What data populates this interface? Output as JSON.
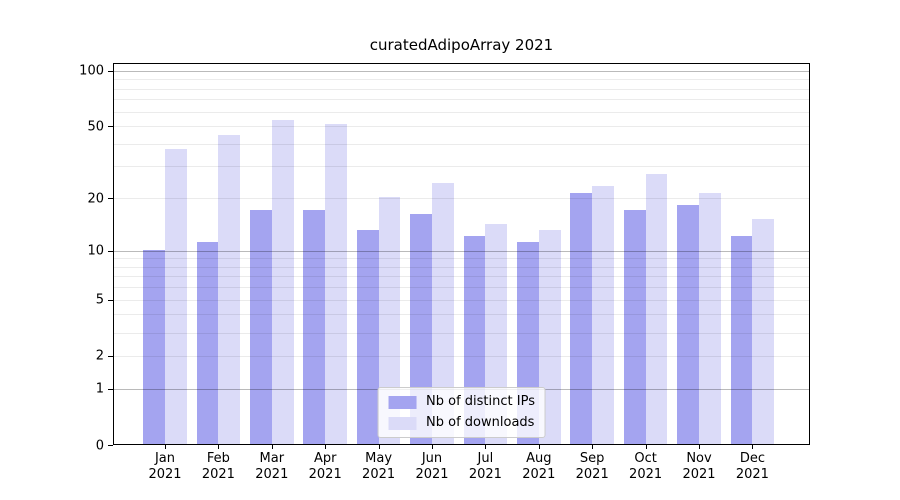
{
  "chart_data": {
    "type": "bar",
    "title": "curatedAdipoArray 2021",
    "categories": [
      "Jan 2021",
      "Feb 2021",
      "Mar 2021",
      "Apr 2021",
      "May 2021",
      "Jun 2021",
      "Jul 2021",
      "Aug 2021",
      "Sep 2021",
      "Oct 2021",
      "Nov 2021",
      "Dec 2021"
    ],
    "x_tick_months": [
      "Jan",
      "Feb",
      "Mar",
      "Apr",
      "May",
      "Jun",
      "Jul",
      "Aug",
      "Sep",
      "Oct",
      "Nov",
      "Dec"
    ],
    "x_tick_year": "2021",
    "series": [
      {
        "name": "Nb of distinct IPs",
        "color": "#a4a4f0",
        "values": [
          10,
          11,
          17,
          17,
          13,
          16,
          12,
          11,
          21,
          17,
          18,
          12
        ]
      },
      {
        "name": "Nb of downloads",
        "color": "#dbdbf8",
        "values": [
          37,
          44,
          53,
          51,
          20,
          24,
          14,
          13,
          23,
          27,
          21,
          15
        ]
      }
    ],
    "yscale": "log1p",
    "ylim": [
      0,
      110
    ],
    "ytick_labels": [
      100,
      50,
      20,
      10,
      5,
      2,
      1,
      0
    ],
    "major_gridlines": [
      1,
      10,
      100
    ],
    "minor_gridlines": [
      2,
      3,
      4,
      5,
      6,
      7,
      8,
      9,
      20,
      30,
      40,
      50,
      60,
      70,
      80,
      90
    ],
    "grid": true,
    "legend_position": "lower center",
    "colors": {
      "grid_major": "rgba(0,0,0,0.27)",
      "grid_minor": "rgba(0,0,0,0.08)",
      "axis": "#000000",
      "text": "#000000"
    }
  }
}
